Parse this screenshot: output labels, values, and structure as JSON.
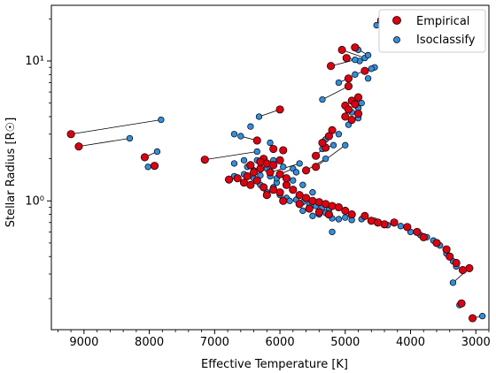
{
  "chart_data": {
    "type": "scatter",
    "xlabel": "Effective Temperature [K]",
    "ylabel": "Stellar Radius [R☉]",
    "xlim": [
      9500,
      2800
    ],
    "x_inverted": true,
    "ylim": [
      0.12,
      25
    ],
    "y_scale": "log",
    "x_ticks": [
      9000,
      8000,
      7000,
      6000,
      5000,
      4000,
      3000
    ],
    "y_ticks": [
      {
        "value": 1,
        "label": "10⁰"
      },
      {
        "value": 10,
        "label": "10¹"
      }
    ],
    "grid": false,
    "legend_position": "top-right",
    "colors": {
      "empirical": "#e0000f",
      "isoclassify": "#2f8fe0",
      "connector": "#000000"
    },
    "series": [
      {
        "name": "Empirical",
        "marker": "large-circle"
      },
      {
        "name": "Isoclassify",
        "marker": "small-circle"
      }
    ],
    "pairs": [
      {
        "empirical": [
          9200,
          3.0
        ],
        "isoclassify": [
          7820,
          3.8
        ]
      },
      {
        "empirical": [
          9080,
          2.45
        ],
        "isoclassify": [
          8300,
          2.8
        ]
      },
      {
        "empirical": [
          8070,
          2.05
        ],
        "isoclassify": [
          7880,
          2.25
        ]
      },
      {
        "empirical": [
          7920,
          1.78
        ],
        "isoclassify": [
          8020,
          1.75
        ]
      },
      {
        "empirical": [
          7150,
          1.97
        ],
        "isoclassify": [
          6350,
          2.25
        ]
      },
      {
        "empirical": [
          6000,
          4.5
        ],
        "isoclassify": [
          6320,
          4.0
        ]
      },
      {
        "empirical": [
          6350,
          2.7
        ],
        "isoclassify": [
          6600,
          2.9
        ]
      },
      {
        "empirical": [
          6100,
          2.35
        ],
        "isoclassify": [
          6150,
          2.6
        ]
      },
      {
        "empirical": [
          5450,
          2.1
        ],
        "isoclassify": [
          5350,
          2.35
        ]
      },
      {
        "empirical": [
          5300,
          2.4
        ],
        "isoclassify": [
          5180,
          2.5
        ]
      },
      {
        "empirical": [
          5450,
          1.75
        ],
        "isoclassify": [
          5000,
          2.5
        ]
      },
      {
        "empirical": [
          5600,
          1.65
        ],
        "isoclassify": [
          5300,
          2.0
        ]
      },
      {
        "empirical": [
          4450,
          19.5
        ],
        "isoclassify": [
          4520,
          18.0
        ]
      },
      {
        "empirical": [
          5050,
          12.0
        ],
        "isoclassify": [
          4700,
          10.5
        ]
      },
      {
        "empirical": [
          4850,
          12.5
        ],
        "isoclassify": [
          4650,
          11.0
        ]
      },
      {
        "empirical": [
          4980,
          10.5
        ],
        "isoclassify": [
          4780,
          10.0
        ]
      },
      {
        "empirical": [
          5220,
          9.2
        ],
        "isoclassify": [
          4850,
          10.2
        ]
      },
      {
        "empirical": [
          4700,
          8.5
        ],
        "isoclassify": [
          4850,
          8.0
        ]
      },
      {
        "empirical": [
          4950,
          7.5
        ],
        "isoclassify": [
          5100,
          7.0
        ]
      },
      {
        "empirical": [
          4950,
          6.6
        ],
        "isoclassify": [
          5350,
          5.3
        ]
      },
      {
        "empirical": [
          6150,
          1.6
        ],
        "isoclassify": [
          5700,
          1.85
        ]
      },
      {
        "empirical": [
          6000,
          1.55
        ],
        "isoclassify": [
          5800,
          1.7
        ]
      },
      {
        "empirical": [
          3100,
          0.33
        ],
        "isoclassify": [
          3350,
          0.26
        ]
      },
      {
        "empirical": [
          3050,
          0.145
        ],
        "isoclassify": [
          2900,
          0.15
        ]
      },
      {
        "empirical": [
          3220,
          0.185
        ],
        "isoclassify": [
          3250,
          0.18
        ]
      }
    ],
    "empirical_only": [
      [
        4800,
        5.5
      ],
      [
        4900,
        5.2
      ],
      [
        4850,
        4.9
      ],
      [
        5000,
        4.8
      ],
      [
        4950,
        4.5
      ],
      [
        4800,
        4.2
      ],
      [
        5000,
        4.0
      ],
      [
        4900,
        3.8
      ],
      [
        5200,
        3.2
      ],
      [
        5350,
        2.6
      ],
      [
        5250,
        2.9
      ],
      [
        5950,
        2.3
      ],
      [
        6000,
        1.95
      ],
      [
        6250,
        2.0
      ],
      [
        6200,
        1.85
      ],
      [
        6450,
        1.8
      ],
      [
        6300,
        1.7
      ],
      [
        6100,
        1.8
      ],
      [
        6400,
        1.6
      ],
      [
        6500,
        1.5
      ],
      [
        6650,
        1.45
      ],
      [
        6780,
        1.42
      ],
      [
        6550,
        1.35
      ],
      [
        6350,
        1.4
      ],
      [
        6450,
        1.3
      ],
      [
        6250,
        1.25
      ],
      [
        6100,
        1.2
      ],
      [
        6000,
        1.15
      ],
      [
        5900,
        1.3
      ],
      [
        5800,
        1.2
      ],
      [
        5700,
        1.1
      ],
      [
        5600,
        1.05
      ],
      [
        5500,
        1.0
      ],
      [
        5400,
        0.98
      ],
      [
        5300,
        0.95
      ],
      [
        5200,
        0.92
      ],
      [
        5100,
        0.9
      ],
      [
        5000,
        0.85
      ],
      [
        4900,
        0.8
      ],
      [
        4700,
        0.78
      ],
      [
        4400,
        0.68
      ],
      [
        4250,
        0.7
      ],
      [
        4050,
        0.65
      ],
      [
        3900,
        0.6
      ],
      [
        3800,
        0.55
      ],
      [
        3600,
        0.5
      ],
      [
        3450,
        0.45
      ],
      [
        3400,
        0.4
      ],
      [
        3300,
        0.36
      ],
      [
        3200,
        0.32
      ],
      [
        5950,
        1.0
      ],
      [
        6200,
        1.1
      ],
      [
        5700,
        0.95
      ],
      [
        5550,
        0.88
      ],
      [
        5400,
        0.83
      ],
      [
        5250,
        0.8
      ],
      [
        4600,
        0.72
      ],
      [
        4500,
        0.7
      ],
      [
        5900,
        1.45
      ],
      [
        6300,
        1.9
      ]
    ],
    "isoclassify_only": [
      [
        6700,
        1.85
      ],
      [
        6500,
        1.75
      ],
      [
        6400,
        1.65
      ],
      [
        6550,
        1.55
      ],
      [
        6700,
        1.5
      ],
      [
        6400,
        1.45
      ],
      [
        6300,
        1.52
      ],
      [
        6150,
        1.5
      ],
      [
        6050,
        1.35
      ],
      [
        6100,
        1.25
      ],
      [
        6300,
        1.3
      ],
      [
        6200,
        1.15
      ],
      [
        6000,
        1.1
      ],
      [
        5900,
        1.05
      ],
      [
        5850,
        1.0
      ],
      [
        5750,
        1.02
      ],
      [
        5650,
        0.98
      ],
      [
        5550,
        0.95
      ],
      [
        5450,
        0.92
      ],
      [
        5350,
        0.9
      ],
      [
        5250,
        0.86
      ],
      [
        5300,
        0.82
      ],
      [
        5400,
        0.8
      ],
      [
        5500,
        0.78
      ],
      [
        5200,
        0.75
      ],
      [
        5100,
        0.74
      ],
      [
        5000,
        0.76
      ],
      [
        4900,
        0.73
      ],
      [
        4750,
        0.74
      ],
      [
        4550,
        0.72
      ],
      [
        4350,
        0.67
      ],
      [
        4150,
        0.66
      ],
      [
        4000,
        0.6
      ],
      [
        3850,
        0.57
      ],
      [
        3750,
        0.55
      ],
      [
        3650,
        0.52
      ],
      [
        3550,
        0.48
      ],
      [
        3450,
        0.42
      ],
      [
        3350,
        0.37
      ],
      [
        3300,
        0.34
      ],
      [
        5200,
        0.6
      ],
      [
        5650,
        0.85
      ],
      [
        6050,
        1.45
      ],
      [
        6550,
        1.95
      ],
      [
        6350,
        1.95
      ],
      [
        6200,
        1.7
      ],
      [
        5750,
        1.6
      ],
      [
        4850,
        5.2
      ],
      [
        4750,
        5.0
      ],
      [
        4800,
        4.6
      ],
      [
        4900,
        4.3
      ],
      [
        4800,
        3.9
      ],
      [
        4950,
        3.5
      ],
      [
        5100,
        3.0
      ],
      [
        5300,
        2.75
      ],
      [
        6700,
        3.0
      ],
      [
        6450,
        3.4
      ],
      [
        6100,
        1.95
      ],
      [
        5950,
        1.75
      ],
      [
        5800,
        1.4
      ],
      [
        5650,
        1.3
      ],
      [
        5500,
        1.15
      ],
      [
        4550,
        9.0
      ],
      [
        4650,
        7.5
      ],
      [
        4800,
        12.0
      ],
      [
        4600,
        8.8
      ]
    ]
  }
}
